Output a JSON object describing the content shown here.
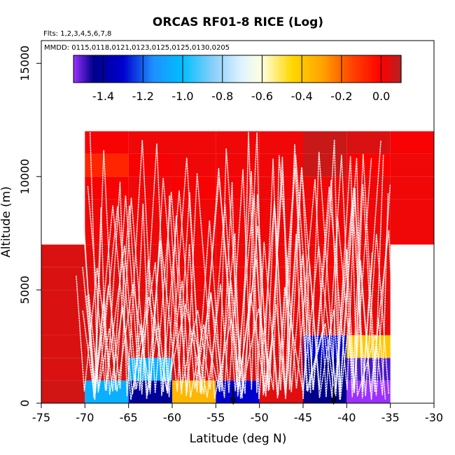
{
  "chart_data": {
    "type": "heatmap",
    "title": "ORCAS RF01-8 RICE (Log)",
    "flights_label": "Flts: 1,2,3,4,5,6,7,8",
    "dates_label": "MMDD: 0115,0118,0121,0123,0125,0125,0130,0205",
    "xlabel": "Latitude (deg N)",
    "ylabel": "Altitude (m)",
    "xlim": [
      -75,
      -30
    ],
    "ylim": [
      0,
      16000
    ],
    "x_ticks": [
      -75,
      -70,
      -65,
      -60,
      -55,
      -50,
      -45,
      -40,
      -35,
      -30
    ],
    "x_tick_labels": [
      "-75",
      "-70",
      "-65",
      "-60",
      "-55",
      "-50",
      "-45",
      "-40",
      "-35",
      "-30"
    ],
    "y_ticks": [
      0,
      5000,
      10000,
      15000
    ],
    "y_tick_labels": [
      "0",
      "5000",
      "10000",
      "15000"
    ],
    "colorbar": {
      "range": [
        -1.55,
        0.1
      ],
      "ticks": [
        -1.4,
        -1.2,
        -1.0,
        -0.8,
        -0.6,
        -0.4,
        -0.2,
        0.0
      ],
      "tick_labels": [
        "-1.4",
        "-1.2",
        "-1.0",
        "-0.8",
        "-0.6",
        "-0.4",
        "-0.2",
        "0.0"
      ],
      "stops": [
        {
          "v": -1.55,
          "color": "#9b30ff"
        },
        {
          "v": -1.45,
          "color": "#00008b"
        },
        {
          "v": -1.3,
          "color": "#0000cd"
        },
        {
          "v": -1.15,
          "color": "#1e90ff"
        },
        {
          "v": -1.0,
          "color": "#00bfff"
        },
        {
          "v": -0.85,
          "color": "#87cefa"
        },
        {
          "v": -0.7,
          "color": "#e0f4ff"
        },
        {
          "v": -0.6,
          "color": "#ffffe0"
        },
        {
          "v": -0.45,
          "color": "#ffd700"
        },
        {
          "v": -0.3,
          "color": "#ffa500"
        },
        {
          "v": -0.15,
          "color": "#ff4500"
        },
        {
          "v": 0.0,
          "color": "#ff0000"
        },
        {
          "v": 0.1,
          "color": "#b22222"
        }
      ]
    },
    "cells": [
      {
        "x0": -75,
        "x1": -70,
        "y0": 0,
        "y1": 1000,
        "value": 0.06
      },
      {
        "x0": -75,
        "x1": -70,
        "y0": 1000,
        "y1": 2000,
        "value": 0.05
      },
      {
        "x0": -75,
        "x1": -70,
        "y0": 2000,
        "y1": 3000,
        "value": 0.05
      },
      {
        "x0": -75,
        "x1": -70,
        "y0": 3000,
        "y1": 4000,
        "value": 0.05
      },
      {
        "x0": -75,
        "x1": -70,
        "y0": 4000,
        "y1": 5000,
        "value": 0.05
      },
      {
        "x0": -75,
        "x1": -70,
        "y0": 5000,
        "y1": 6000,
        "value": 0.05
      },
      {
        "x0": -75,
        "x1": -70,
        "y0": 6000,
        "y1": 7000,
        "value": 0.05
      },
      {
        "x0": -70,
        "x1": -65,
        "y0": 0,
        "y1": 1000,
        "value": -1.05
      },
      {
        "x0": -70,
        "x1": -65,
        "y0": 1000,
        "y1": 2000,
        "value": 0.06
      },
      {
        "x0": -70,
        "x1": -65,
        "y0": 2000,
        "y1": 3000,
        "value": 0.05
      },
      {
        "x0": -70,
        "x1": -65,
        "y0": 3000,
        "y1": 4000,
        "value": 0.05
      },
      {
        "x0": -70,
        "x1": -65,
        "y0": 4000,
        "y1": 5000,
        "value": 0.04
      },
      {
        "x0": -70,
        "x1": -65,
        "y0": 5000,
        "y1": 6000,
        "value": 0.04
      },
      {
        "x0": -70,
        "x1": -65,
        "y0": 6000,
        "y1": 7000,
        "value": 0.03
      },
      {
        "x0": -70,
        "x1": -65,
        "y0": 7000,
        "y1": 8000,
        "value": 0.02
      },
      {
        "x0": -70,
        "x1": -65,
        "y0": 8000,
        "y1": 9000,
        "value": 0.02
      },
      {
        "x0": -70,
        "x1": -65,
        "y0": 9000,
        "y1": 10000,
        "value": 0.01
      },
      {
        "x0": -70,
        "x1": -65,
        "y0": 10000,
        "y1": 11000,
        "value": -0.08
      },
      {
        "x0": -70,
        "x1": -65,
        "y0": 11000,
        "y1": 12000,
        "value": 0.01
      },
      {
        "x0": -65,
        "x1": -60,
        "y0": 0,
        "y1": 1000,
        "value": -1.42
      },
      {
        "x0": -65,
        "x1": -60,
        "y0": 1000,
        "y1": 2000,
        "value": -1.05
      },
      {
        "x0": -65,
        "x1": -60,
        "y0": 2000,
        "y1": 3000,
        "value": 0.05
      },
      {
        "x0": -65,
        "x1": -60,
        "y0": 3000,
        "y1": 4000,
        "value": 0.04
      },
      {
        "x0": -65,
        "x1": -60,
        "y0": 4000,
        "y1": 5000,
        "value": 0.04
      },
      {
        "x0": -65,
        "x1": -60,
        "y0": 5000,
        "y1": 6000,
        "value": 0.03
      },
      {
        "x0": -65,
        "x1": -60,
        "y0": 6000,
        "y1": 7000,
        "value": 0.03
      },
      {
        "x0": -65,
        "x1": -60,
        "y0": 7000,
        "y1": 8000,
        "value": 0.02
      },
      {
        "x0": -65,
        "x1": -60,
        "y0": 8000,
        "y1": 9000,
        "value": 0.02
      },
      {
        "x0": -65,
        "x1": -60,
        "y0": 9000,
        "y1": 10000,
        "value": 0.02
      },
      {
        "x0": -65,
        "x1": -60,
        "y0": 10000,
        "y1": 11000,
        "value": 0.01
      },
      {
        "x0": -65,
        "x1": -60,
        "y0": 11000,
        "y1": 12000,
        "value": 0.02
      },
      {
        "x0": -60,
        "x1": -55,
        "y0": 0,
        "y1": 1000,
        "value": -0.35
      },
      {
        "x0": -60,
        "x1": -55,
        "y0": 1000,
        "y1": 2000,
        "value": 0.04
      },
      {
        "x0": -60,
        "x1": -55,
        "y0": 2000,
        "y1": 3000,
        "value": 0.04
      },
      {
        "x0": -60,
        "x1": -55,
        "y0": 3000,
        "y1": 4000,
        "value": 0.03
      },
      {
        "x0": -60,
        "x1": -55,
        "y0": 4000,
        "y1": 5000,
        "value": 0.03
      },
      {
        "x0": -60,
        "x1": -55,
        "y0": 5000,
        "y1": 6000,
        "value": 0.02
      },
      {
        "x0": -60,
        "x1": -55,
        "y0": 6000,
        "y1": 7000,
        "value": 0.02
      },
      {
        "x0": -60,
        "x1": -55,
        "y0": 7000,
        "y1": 8000,
        "value": 0.02
      },
      {
        "x0": -60,
        "x1": -55,
        "y0": 8000,
        "y1": 9000,
        "value": 0.02
      },
      {
        "x0": -60,
        "x1": -55,
        "y0": 9000,
        "y1": 10000,
        "value": 0.01
      },
      {
        "x0": -60,
        "x1": -55,
        "y0": 10000,
        "y1": 11000,
        "value": 0.02
      },
      {
        "x0": -60,
        "x1": -55,
        "y0": 11000,
        "y1": 12000,
        "value": 0.02
      },
      {
        "x0": -55,
        "x1": -50,
        "y0": 0,
        "y1": 1000,
        "value": -1.3
      },
      {
        "x0": -55,
        "x1": -50,
        "y0": 1000,
        "y1": 2000,
        "value": 0.05
      },
      {
        "x0": -55,
        "x1": -50,
        "y0": 2000,
        "y1": 3000,
        "value": 0.04
      },
      {
        "x0": -55,
        "x1": -50,
        "y0": 3000,
        "y1": 4000,
        "value": 0.03
      },
      {
        "x0": -55,
        "x1": -50,
        "y0": 4000,
        "y1": 5000,
        "value": 0.03
      },
      {
        "x0": -55,
        "x1": -50,
        "y0": 5000,
        "y1": 6000,
        "value": 0.02
      },
      {
        "x0": -55,
        "x1": -50,
        "y0": 6000,
        "y1": 7000,
        "value": 0.02
      },
      {
        "x0": -55,
        "x1": -50,
        "y0": 7000,
        "y1": 8000,
        "value": 0.02
      },
      {
        "x0": -55,
        "x1": -50,
        "y0": 8000,
        "y1": 9000,
        "value": 0.02
      },
      {
        "x0": -55,
        "x1": -50,
        "y0": 9000,
        "y1": 10000,
        "value": 0.01
      },
      {
        "x0": -55,
        "x1": -50,
        "y0": 10000,
        "y1": 11000,
        "value": 0.02
      },
      {
        "x0": -55,
        "x1": -50,
        "y0": 11000,
        "y1": 12000,
        "value": 0.02
      },
      {
        "x0": -50,
        "x1": -45,
        "y0": 0,
        "y1": 1000,
        "value": 0.04
      },
      {
        "x0": -50,
        "x1": -45,
        "y0": 1000,
        "y1": 2000,
        "value": 0.04
      },
      {
        "x0": -50,
        "x1": -45,
        "y0": 2000,
        "y1": 3000,
        "value": 0.03
      },
      {
        "x0": -50,
        "x1": -45,
        "y0": 3000,
        "y1": 4000,
        "value": 0.03
      },
      {
        "x0": -50,
        "x1": -45,
        "y0": 4000,
        "y1": 5000,
        "value": 0.02
      },
      {
        "x0": -50,
        "x1": -45,
        "y0": 5000,
        "y1": 6000,
        "value": 0.02
      },
      {
        "x0": -50,
        "x1": -45,
        "y0": 6000,
        "y1": 7000,
        "value": 0.02
      },
      {
        "x0": -50,
        "x1": -45,
        "y0": 7000,
        "y1": 8000,
        "value": 0.02
      },
      {
        "x0": -50,
        "x1": -45,
        "y0": 8000,
        "y1": 9000,
        "value": 0.02
      },
      {
        "x0": -50,
        "x1": -45,
        "y0": 9000,
        "y1": 10000,
        "value": 0.02
      },
      {
        "x0": -50,
        "x1": -45,
        "y0": 10000,
        "y1": 11000,
        "value": 0.02
      },
      {
        "x0": -50,
        "x1": -45,
        "y0": 11000,
        "y1": 12000,
        "value": 0.02
      },
      {
        "x0": -45,
        "x1": -40,
        "y0": 0,
        "y1": 1000,
        "value": -1.45
      },
      {
        "x0": -45,
        "x1": -40,
        "y0": 1000,
        "y1": 2000,
        "value": -1.45
      },
      {
        "x0": -45,
        "x1": -40,
        "y0": 2000,
        "y1": 3000,
        "value": -1.3
      },
      {
        "x0": -45,
        "x1": -40,
        "y0": 3000,
        "y1": 4000,
        "value": 0.04
      },
      {
        "x0": -45,
        "x1": -40,
        "y0": 4000,
        "y1": 5000,
        "value": 0.03
      },
      {
        "x0": -45,
        "x1": -40,
        "y0": 5000,
        "y1": 6000,
        "value": 0.02
      },
      {
        "x0": -45,
        "x1": -40,
        "y0": 6000,
        "y1": 7000,
        "value": 0.02
      },
      {
        "x0": -45,
        "x1": -40,
        "y0": 7000,
        "y1": 8000,
        "value": 0.02
      },
      {
        "x0": -45,
        "x1": -40,
        "y0": 8000,
        "y1": 9000,
        "value": 0.02
      },
      {
        "x0": -45,
        "x1": -40,
        "y0": 9000,
        "y1": 10000,
        "value": 0.02
      },
      {
        "x0": -45,
        "x1": -40,
        "y0": 10000,
        "y1": 11000,
        "value": 0.07
      },
      {
        "x0": -45,
        "x1": -40,
        "y0": 11000,
        "y1": 12000,
        "value": 0.07
      },
      {
        "x0": -40,
        "x1": -35,
        "y0": 0,
        "y1": 1000,
        "value": -1.55
      },
      {
        "x0": -40,
        "x1": -35,
        "y0": 1000,
        "y1": 2000,
        "value": -1.5
      },
      {
        "x0": -40,
        "x1": -35,
        "y0": 2000,
        "y1": 3000,
        "value": -0.4
      },
      {
        "x0": -40,
        "x1": -35,
        "y0": 3000,
        "y1": 4000,
        "value": 0.02
      },
      {
        "x0": -40,
        "x1": -35,
        "y0": 4000,
        "y1": 5000,
        "value": 0.04
      },
      {
        "x0": -40,
        "x1": -35,
        "y0": 5000,
        "y1": 6000,
        "value": 0.03
      },
      {
        "x0": -40,
        "x1": -35,
        "y0": 6000,
        "y1": 7000,
        "value": 0.02
      },
      {
        "x0": -40,
        "x1": -35,
        "y0": 7000,
        "y1": 8000,
        "value": 0.02
      },
      {
        "x0": -40,
        "x1": -35,
        "y0": 8000,
        "y1": 9000,
        "value": 0.02
      },
      {
        "x0": -40,
        "x1": -35,
        "y0": 9000,
        "y1": 10000,
        "value": 0.02
      },
      {
        "x0": -40,
        "x1": -35,
        "y0": 10000,
        "y1": 11000,
        "value": 0.0
      },
      {
        "x0": -40,
        "x1": -35,
        "y0": 11000,
        "y1": 12000,
        "value": 0.05
      },
      {
        "x0": -35,
        "x1": -30,
        "y0": 7000,
        "y1": 8000,
        "value": 0.02
      },
      {
        "x0": -35,
        "x1": -30,
        "y0": 8000,
        "y1": 9000,
        "value": 0.02
      },
      {
        "x0": -35,
        "x1": -30,
        "y0": 9000,
        "y1": 10000,
        "value": 0.02
      },
      {
        "x0": -35,
        "x1": -30,
        "y0": 10000,
        "y1": 11000,
        "value": 0.02
      },
      {
        "x0": -35,
        "x1": -30,
        "y0": 11000,
        "y1": 12000,
        "value": 0.01
      }
    ],
    "markers": [
      {
        "x": -53,
        "y": 0
      },
      {
        "x": -41.5,
        "y": 0
      }
    ]
  }
}
